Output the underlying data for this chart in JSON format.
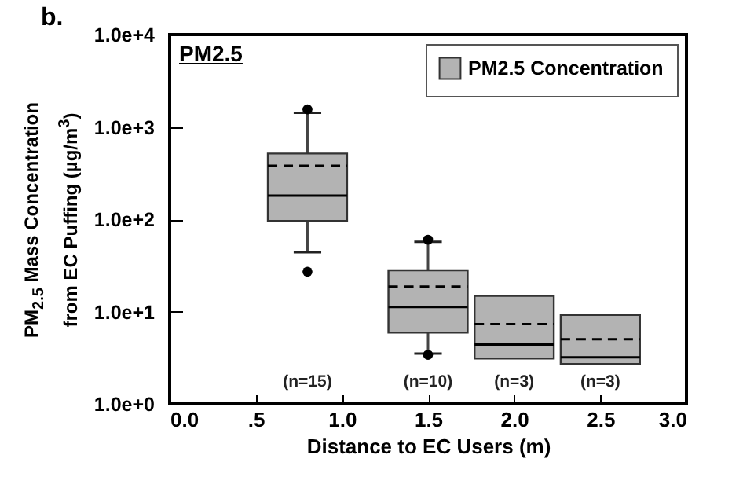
{
  "chart_data": {
    "type": "box",
    "xlabel": "Distance to EC Users (m)",
    "ylabel": "PM$_{2.5}$ Mass Concentration\nfrom EC Puffing (µg/m$^{3}$)",
    "annotations": [
      "b.",
      "PM2.5",
      "(n=15)",
      "(n=10)",
      "(n=3)",
      "(n=3)"
    ],
    "x": [
      0.8,
      1.5,
      2.0,
      2.5
    ],
    "series": [
      {
        "name": "PM2.5 Concentration",
        "color": "#b3b3b3",
        "boxes": [
          {
            "low": 44,
            "q1": 96,
            "median": 180,
            "q3": 515,
            "high": 1420,
            "mean": 380,
            "outliers": [
              27,
              1550
            ]
          },
          {
            "low": 3.5,
            "q1": 5.9,
            "median": 11.2,
            "q3": 28,
            "high": 57,
            "mean": 18.6,
            "outliers": [
              3.4,
              60
            ]
          },
          {
            "low": 3.1,
            "q1": 3.1,
            "median": 4.4,
            "q3": 14.8,
            "high": 14.8,
            "mean": 7.3
          },
          {
            "low": 2.7,
            "q1": 2.7,
            "median": 3.2,
            "q3": 9.2,
            "high": 9.2,
            "mean": 5.0
          }
        ]
      }
    ],
    "xlim": [
      0,
      3
    ],
    "xticks": [
      {
        "value": 0,
        "label": "0.0"
      },
      {
        "value": 0.5,
        "label": ".5"
      },
      {
        "value": 1,
        "label": "1.0"
      },
      {
        "value": 1.5,
        "label": "1.5"
      },
      {
        "value": 2,
        "label": "2.0"
      },
      {
        "value": 2.5,
        "label": "2.5"
      },
      {
        "value": 3,
        "label": "3.0"
      }
    ],
    "ylim": [
      1,
      10000
    ],
    "yticks": [
      {
        "value": 1,
        "label": "1.0e+0"
      },
      {
        "value": 10,
        "label": "1.0e+1"
      },
      {
        "value": 100,
        "label": "1.0e+2"
      },
      {
        "value": 1000,
        "label": "1.0e+3"
      },
      {
        "value": 10000,
        "label": "1.0e+4"
      }
    ],
    "log": true,
    "legend": "top right"
  }
}
